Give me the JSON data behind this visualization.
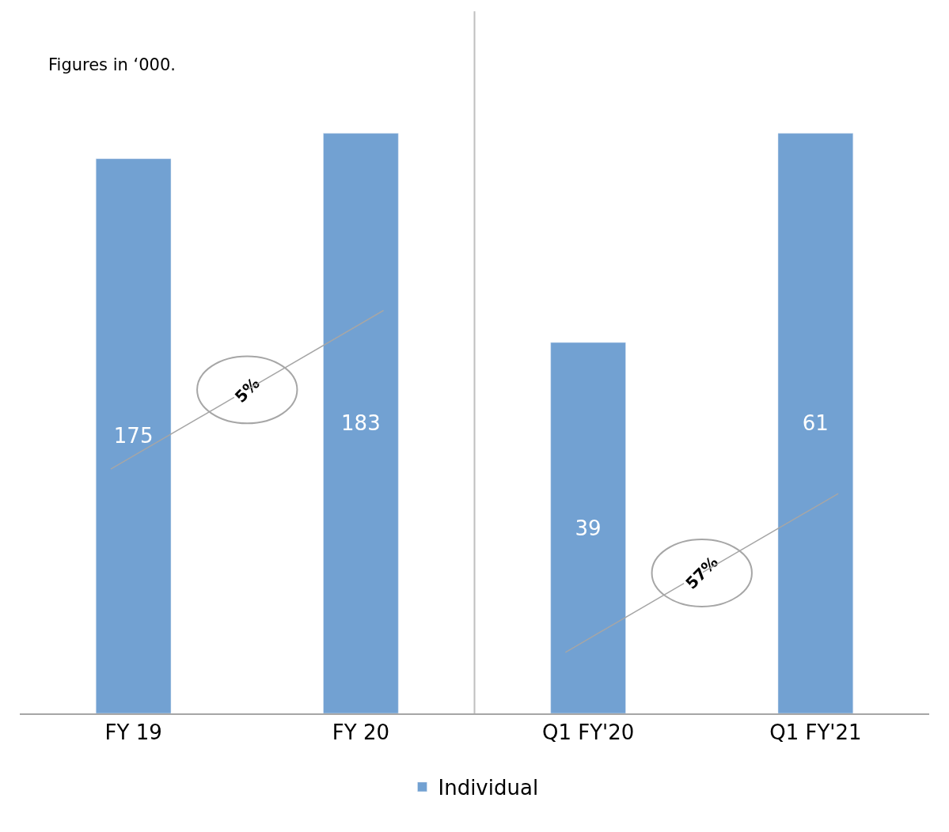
{
  "chart_data": [
    {
      "type": "bar",
      "categories": [
        "FY 19",
        "FY 20"
      ],
      "series": [
        {
          "name": "Individual",
          "color": "#72a1d2",
          "values": [
            175,
            183
          ]
        }
      ],
      "tick_labels": "x",
      "data_labels": true,
      "legend": "bottom",
      "annotations": [
        "Figures in ‘000.",
        "5%"
      ]
    },
    {
      "type": "bar",
      "categories": [
        "Q1 FY'20",
        "Q1 FY'21"
      ],
      "series": [
        {
          "color": "#72a1d2",
          "values": [
            39,
            61
          ]
        }
      ],
      "tick_labels": "x",
      "data_labels": true,
      "annotations": [
        "57%"
      ]
    }
  ]
}
